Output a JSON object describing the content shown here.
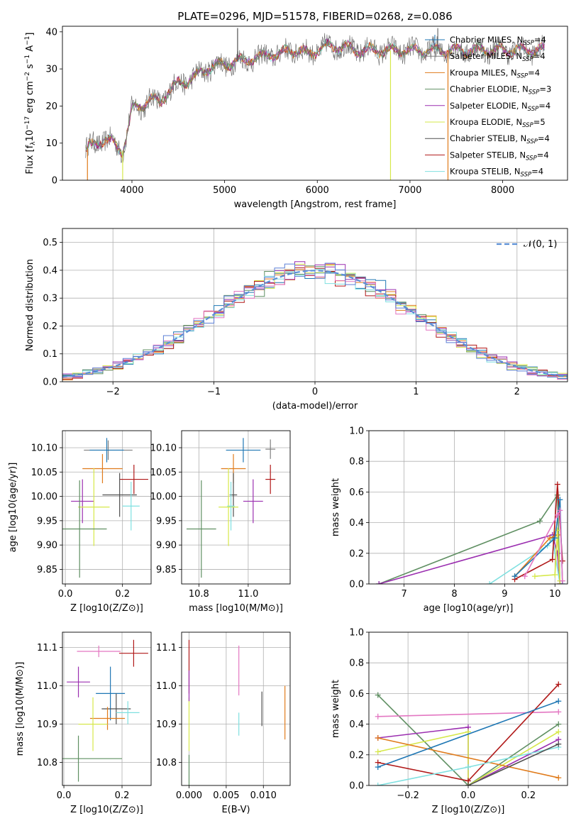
{
  "title": "PLATE=0296, MJD=51578, FIBERID=0268, z=0.086",
  "colors": {
    "Chabrier MILES": "#1f77b4",
    "Salpeter MILES": "#7f7f7f",
    "Kroupa MILES": "#e07b1b",
    "Chabrier ELODIE": "#5f8f62",
    "Salpeter ELODIE": "#9b2fb0",
    "Kroupa ELODIE": "#d6e84a",
    "Chabrier STELIB": "#505050",
    "Salpeter STELIB": "#b01818",
    "Kroupa STELIB": "#7fe0e0",
    "Salpeter MILES pink": "#e377c2",
    "blue": "#5b7fd6",
    "normal": "#5b8fd6"
  },
  "chart_data": [
    {
      "id": "spectrum",
      "type": "line",
      "xlabel": "wavelength [Angstrom, rest frame]",
      "ylabel": "Flux [f_λ 10^-17 erg cm^-2 s^-1 A^-1]",
      "xlim": [
        3250,
        8700
      ],
      "ylim": [
        0,
        41.5
      ],
      "xticks": [
        "4000",
        "5000",
        "6000",
        "7000",
        "8000"
      ],
      "yticks": [
        "0",
        "10",
        "20",
        "30",
        "40"
      ],
      "legend_position": "right",
      "legend": [
        {
          "label": "Chabrier MILES, N",
          "sub": "SSP",
          "suffix": "=4"
        },
        {
          "label": "Salpeter MILES, N",
          "sub": "SSP",
          "suffix": "=4"
        },
        {
          "label": "Kroupa MILES, N",
          "sub": "SSP",
          "suffix": "=4"
        },
        {
          "label": "Chabrier ELODIE, N",
          "sub": "SSP",
          "suffix": "=3"
        },
        {
          "label": "Salpeter ELODIE, N",
          "sub": "SSP",
          "suffix": "=4"
        },
        {
          "label": "Kroupa ELODIE, N",
          "sub": "SSP",
          "suffix": "=5"
        },
        {
          "label": "Chabrier STELIB, N",
          "sub": "SSP",
          "suffix": "=4"
        },
        {
          "label": "Salpeter STELIB, N",
          "sub": "SSP",
          "suffix": "=4"
        },
        {
          "label": "Kroupa STELIB, N",
          "sub": "SSP",
          "suffix": "=4"
        }
      ],
      "continuum": [
        [
          3500,
          8
        ],
        [
          3600,
          10
        ],
        [
          3700,
          11
        ],
        [
          3800,
          10
        ],
        [
          3900,
          8
        ],
        [
          3950,
          13
        ],
        [
          4000,
          19
        ],
        [
          4100,
          20
        ],
        [
          4200,
          22
        ],
        [
          4300,
          21
        ],
        [
          4400,
          24
        ],
        [
          4500,
          26
        ],
        [
          4600,
          27
        ],
        [
          4700,
          28
        ],
        [
          4800,
          30
        ],
        [
          4900,
          31
        ],
        [
          5000,
          31
        ],
        [
          5100,
          32
        ],
        [
          5200,
          32
        ],
        [
          5300,
          33
        ],
        [
          5400,
          33
        ],
        [
          5500,
          34
        ],
        [
          5600,
          34
        ],
        [
          5700,
          35
        ],
        [
          5800,
          35
        ],
        [
          5900,
          34
        ],
        [
          6000,
          35
        ],
        [
          6100,
          36
        ],
        [
          6200,
          36
        ],
        [
          6300,
          36
        ],
        [
          6400,
          35
        ],
        [
          6500,
          35
        ],
        [
          6600,
          35
        ],
        [
          6700,
          35
        ],
        [
          6800,
          35
        ],
        [
          6900,
          35
        ],
        [
          7000,
          35
        ],
        [
          7100,
          35
        ],
        [
          7200,
          35
        ],
        [
          7300,
          35
        ],
        [
          7400,
          35
        ],
        [
          7500,
          35
        ],
        [
          7600,
          35
        ],
        [
          7800,
          35
        ],
        [
          8000,
          35
        ],
        [
          8200,
          35
        ],
        [
          8400,
          35
        ]
      ],
      "spikes": [
        [
          3520,
          0
        ],
        [
          3900,
          0
        ],
        [
          6790,
          0
        ],
        [
          7410,
          0
        ],
        [
          5140,
          41
        ]
      ]
    },
    {
      "id": "residuals",
      "type": "histogram",
      "xlabel": "(data-model)/error",
      "ylabel": "Normed distribution",
      "xlim": [
        -2.5,
        2.5
      ],
      "ylim": [
        0,
        0.55
      ],
      "xticks": [
        "−2",
        "−1",
        "0",
        "1",
        "2"
      ],
      "yticks": [
        "0.0",
        "0.1",
        "0.2",
        "0.3",
        "0.4",
        "0.5"
      ],
      "legend_label": "𝒩(0, 1)",
      "legend_position": "top-right",
      "bin_width": 0.1
    },
    {
      "id": "Z-age",
      "type": "scatter",
      "xlabel": "Z [log10(Z/Z⊙)]",
      "ylabel": "age  [log10(age/yr)]",
      "xlim": [
        -0.01,
        0.3
      ],
      "ylim": [
        9.82,
        10.135
      ],
      "xticks": [
        "0.0",
        "0.2"
      ],
      "yticks": [
        "9.85",
        "9.90",
        "9.95",
        "10.00",
        "10.05",
        "10.10"
      ],
      "points": [
        {
          "series": "Salpeter MILES",
          "x": 0.15,
          "y": 10.095,
          "ex": 0.085,
          "ey": 0.02
        },
        {
          "series": "Chabrier MILES",
          "x": 0.145,
          "y": 10.095,
          "ex": 0.06,
          "ey": 0.025
        },
        {
          "series": "Kroupa MILES",
          "x": 0.13,
          "y": 10.057,
          "ex": 0.07,
          "ey": 0.03
        },
        {
          "series": "Salpeter STELIB",
          "x": 0.24,
          "y": 10.035,
          "ex": 0.05,
          "ey": 0.03
        },
        {
          "series": "Chabrier STELIB",
          "x": 0.19,
          "y": 10.003,
          "ex": 0.06,
          "ey": 0.045
        },
        {
          "series": "Salpeter ELODIE",
          "x": 0.06,
          "y": 9.99,
          "ex": 0.04,
          "ey": 0.045
        },
        {
          "series": "Kroupa ELODIE",
          "x": 0.1,
          "y": 9.978,
          "ex": 0.055,
          "ey": 0.08
        },
        {
          "series": "Chabrier ELODIE",
          "x": 0.05,
          "y": 9.933,
          "ex": 0.095,
          "ey": 0.1
        },
        {
          "series": "Kroupa STELIB",
          "x": 0.23,
          "y": 9.98,
          "ex": 0.03,
          "ey": 0.05
        }
      ]
    },
    {
      "id": "mass-age",
      "type": "scatter",
      "xlabel": "mass [log10(M/M⊙)]",
      "ylabel": "",
      "xlim": [
        10.73,
        11.17
      ],
      "ylim": [
        9.82,
        10.135
      ],
      "xticks": [
        "10.8",
        "11.0"
      ],
      "yticks": [
        "9.85",
        "9.90",
        "9.95",
        "10.00",
        "10.05",
        "10.10"
      ],
      "points": [
        {
          "series": "Salpeter MILES",
          "x": 11.09,
          "y": 10.097,
          "ex": 0.02,
          "ey": 0.02
        },
        {
          "series": "Chabrier MILES",
          "x": 10.98,
          "y": 10.095,
          "ex": 0.07,
          "ey": 0.025
        },
        {
          "series": "Kroupa MILES",
          "x": 10.94,
          "y": 10.057,
          "ex": 0.05,
          "ey": 0.03
        },
        {
          "series": "Salpeter STELIB",
          "x": 11.09,
          "y": 10.035,
          "ex": 0.02,
          "ey": 0.03
        },
        {
          "series": "Chabrier STELIB",
          "x": 10.94,
          "y": 10.003,
          "ex": 0.015,
          "ey": 0.045
        },
        {
          "series": "Salpeter ELODIE",
          "x": 11.02,
          "y": 9.99,
          "ex": 0.04,
          "ey": 0.045
        },
        {
          "series": "Kroupa ELODIE",
          "x": 10.92,
          "y": 9.978,
          "ex": 0.04,
          "ey": 0.08
        },
        {
          "series": "Chabrier ELODIE",
          "x": 10.81,
          "y": 9.933,
          "ex": 0.06,
          "ey": 0.1
        },
        {
          "series": "Kroupa STELIB",
          "x": 10.93,
          "y": 9.98,
          "ex": 0.015,
          "ey": 0.05
        }
      ]
    },
    {
      "id": "age-weight",
      "type": "line",
      "xlabel": "age  [log10(age/yr)]",
      "ylabel": "mass weight",
      "xlim": [
        6.3,
        10.25
      ],
      "ylim": [
        0,
        1
      ],
      "xticks": [
        "7",
        "8",
        "9",
        "10"
      ],
      "yticks": [
        "0.0",
        "0.2",
        "0.4",
        "0.6",
        "0.8",
        "1.0"
      ],
      "series": [
        {
          "name": "Chabrier ELODIE",
          "points": [
            [
              6.5,
              0.0
            ],
            [
              9.7,
              0.41
            ],
            [
              10.05,
              0.58
            ],
            [
              10.1,
              0.0
            ]
          ]
        },
        {
          "name": "Salpeter ELODIE",
          "points": [
            [
              6.5,
              0.0
            ],
            [
              9.95,
              0.32
            ],
            [
              10.05,
              0.2
            ],
            [
              10.1,
              0.0
            ]
          ]
        },
        {
          "name": "Kroupa STELIB",
          "points": [
            [
              8.7,
              0.0
            ],
            [
              9.85,
              0.25
            ],
            [
              9.95,
              0.3
            ],
            [
              10.1,
              0.0
            ]
          ]
        },
        {
          "name": "Salpeter STELIB",
          "points": [
            [
              9.2,
              0.03
            ],
            [
              9.95,
              0.16
            ],
            [
              10.05,
              0.65
            ],
            [
              10.15,
              0.15
            ]
          ]
        },
        {
          "name": "Kroupa MILES",
          "points": [
            [
              9.2,
              0.05
            ],
            [
              9.9,
              0.3
            ],
            [
              10.05,
              0.32
            ],
            [
              10.1,
              0.0
            ]
          ]
        },
        {
          "name": "Kroupa ELODIE",
          "points": [
            [
              9.6,
              0.05
            ],
            [
              10.0,
              0.06
            ],
            [
              10.05,
              0.35
            ],
            [
              10.1,
              0.02
            ]
          ]
        },
        {
          "name": "Chabrier MILES",
          "points": [
            [
              9.2,
              0.05
            ],
            [
              10.0,
              0.3
            ],
            [
              10.1,
              0.55
            ],
            [
              10.15,
              0.0
            ]
          ]
        },
        {
          "name": "Salpeter MILES pink",
          "points": [
            [
              9.4,
              0.05
            ],
            [
              10.05,
              0.45
            ],
            [
              10.1,
              0.48
            ],
            [
              10.15,
              0.02
            ]
          ]
        }
      ]
    },
    {
      "id": "Z-mass",
      "type": "scatter",
      "xlabel": "Z [log10(Z/Z⊙)]",
      "ylabel": "mass [log10(M/M⊙)]",
      "xlim": [
        -0.005,
        0.3
      ],
      "ylim": [
        10.74,
        11.14
      ],
      "xticks": [
        "0.0",
        "0.2"
      ],
      "yticks": [
        "10.8",
        "10.9",
        "11.0",
        "11.1"
      ],
      "points": [
        {
          "series": "Salpeter STELIB",
          "x": 0.24,
          "y": 11.085,
          "ex": 0.05,
          "ey": 0.035
        },
        {
          "series": "Salpeter MILES pink",
          "x": 0.12,
          "y": 11.09,
          "ex": 0.075,
          "ey": 0.015
        },
        {
          "series": "Salpeter ELODIE",
          "x": 0.05,
          "y": 11.01,
          "ex": 0.04,
          "ey": 0.04
        },
        {
          "series": "Chabrier MILES",
          "x": 0.16,
          "y": 10.98,
          "ex": 0.05,
          "ey": 0.07
        },
        {
          "series": "Chabrier STELIB",
          "x": 0.18,
          "y": 10.94,
          "ex": 0.05,
          "ey": 0.04
        },
        {
          "series": "Kroupa STELIB",
          "x": 0.22,
          "y": 10.93,
          "ex": 0.04,
          "ey": 0.03
        },
        {
          "series": "Kroupa MILES",
          "x": 0.15,
          "y": 10.915,
          "ex": 0.06,
          "ey": 0.03
        },
        {
          "series": "Kroupa ELODIE",
          "x": 0.1,
          "y": 10.9,
          "ex": 0.05,
          "ey": 0.07
        },
        {
          "series": "Chabrier ELODIE",
          "x": 0.05,
          "y": 10.81,
          "ex": 0.15,
          "ey": 0.06
        }
      ]
    },
    {
      "id": "ebv-mass",
      "type": "scatter",
      "xlabel": "E(B-V)",
      "ylabel": "",
      "xlim": [
        -0.001,
        0.0136
      ],
      "ylim": [
        10.74,
        11.14
      ],
      "xticks": [
        "0.000",
        "0.005",
        "0.010"
      ],
      "yticks": [
        "10.8",
        "10.9",
        "11.0",
        "11.1"
      ],
      "points": [
        {
          "series": "Salpeter STELIB",
          "x": 0.0,
          "y": 11.05,
          "ex": 0,
          "ey": 0.07
        },
        {
          "series": "Kroupa ELODIE",
          "x": 0.0,
          "y": 10.9,
          "ex": 0,
          "ey": 0.07
        },
        {
          "series": "Chabrier ELODIE",
          "x": 0.0,
          "y": 10.78,
          "ex": 0,
          "ey": 0.04
        },
        {
          "series": "Salpeter ELODIE",
          "x": 0.0,
          "y": 11.0,
          "ex": 0,
          "ey": 0.04
        },
        {
          "series": "Salpeter MILES pink",
          "x": 0.0067,
          "y": 11.04,
          "ex": 0,
          "ey": 0.065
        },
        {
          "series": "Kroupa STELIB",
          "x": 0.0067,
          "y": 10.9,
          "ex": 0,
          "ey": 0.03
        },
        {
          "series": "Chabrier STELIB",
          "x": 0.0098,
          "y": 10.94,
          "ex": 0,
          "ey": 0.045
        },
        {
          "series": "Kroupa MILES",
          "x": 0.0129,
          "y": 10.93,
          "ex": 0,
          "ey": 0.07
        }
      ]
    },
    {
      "id": "Z-weight",
      "type": "line",
      "xlabel": "Z [log10(Z/Z⊙)]",
      "ylabel": "mass weight",
      "xlim": [
        -0.33,
        0.33
      ],
      "ylim": [
        0,
        1
      ],
      "xticks": [
        "−0.2",
        "0.0",
        "0.2"
      ],
      "yticks": [
        "0.0",
        "0.2",
        "0.4",
        "0.6",
        "0.8",
        "1.0"
      ],
      "series": [
        {
          "name": "Chabrier ELODIE",
          "points": [
            [
              -0.3,
              0.59
            ],
            [
              0.0,
              0.0
            ],
            [
              0.3,
              0.4
            ]
          ]
        },
        {
          "name": "Salpeter MILES pink",
          "points": [
            [
              -0.3,
              0.45
            ],
            [
              0.3,
              0.48
            ]
          ]
        },
        {
          "name": "Salpeter ELODIE",
          "points": [
            [
              -0.3,
              0.31
            ],
            [
              0.0,
              0.38
            ],
            [
              0.0,
              0.0
            ],
            [
              0.3,
              0.3
            ]
          ]
        },
        {
          "name": "Kroupa ELODIE",
          "points": [
            [
              -0.3,
              0.22
            ],
            [
              0.0,
              0.35
            ],
            [
              0.0,
              0.0
            ],
            [
              0.3,
              0.35
            ]
          ]
        },
        {
          "name": "Kroupa MILES",
          "points": [
            [
              -0.3,
              0.31
            ],
            [
              0.3,
              0.05
            ]
          ]
        },
        {
          "name": "Salpeter STELIB",
          "points": [
            [
              -0.3,
              0.15
            ],
            [
              0.0,
              0.03
            ],
            [
              0.3,
              0.66
            ]
          ]
        },
        {
          "name": "Chabrier MILES",
          "points": [
            [
              -0.3,
              0.12
            ],
            [
              0.3,
              0.55
            ]
          ]
        },
        {
          "name": "Kroupa STELIB",
          "points": [
            [
              -0.3,
              0.0
            ],
            [
              0.0,
              0.12
            ],
            [
              0.3,
              0.25
            ]
          ]
        },
        {
          "name": "Chabrier STELIB",
          "points": [
            [
              0.0,
              0.0
            ],
            [
              0.3,
              0.27
            ]
          ]
        }
      ]
    }
  ]
}
